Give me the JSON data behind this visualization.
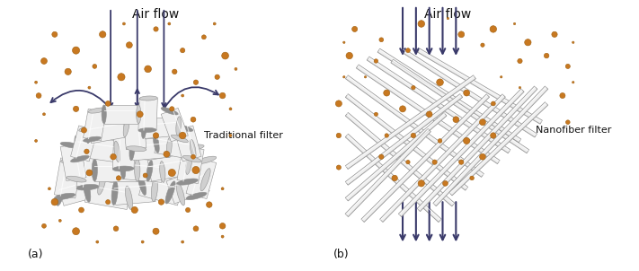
{
  "figsize": [
    7.11,
    3.02
  ],
  "dpi": 100,
  "bg_color": "#ffffff",
  "arrow_color": "#3a3a6a",
  "particle_color": "#c87820",
  "particle_edge_color": "#a06010",
  "fiber_color_light": "#f0f0f0",
  "fiber_color_mid": "#d0d0d0",
  "fiber_color_dark": "#909090",
  "label_a": "(a)",
  "label_b": "(b)",
  "title_a": "Air flow",
  "title_b": "Air flow",
  "filter_label_a": "Traditional filter",
  "filter_label_b": "Nanofiber filter",
  "text_color": "#111111",
  "font_size_title": 10,
  "font_size_label": 8,
  "font_size_panel": 9
}
